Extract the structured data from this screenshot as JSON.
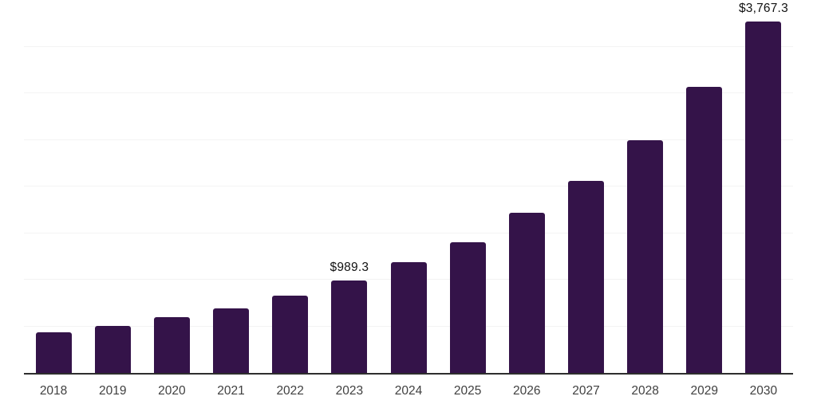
{
  "chart_data": {
    "type": "bar",
    "title": "",
    "xlabel": "",
    "ylabel": "",
    "categories": [
      "2018",
      "2019",
      "2020",
      "2021",
      "2022",
      "2023",
      "2024",
      "2025",
      "2026",
      "2027",
      "2028",
      "2029",
      "2030"
    ],
    "values": [
      435,
      505,
      598,
      692,
      828,
      989.3,
      1188,
      1400,
      1716,
      2060,
      2495,
      3068,
      3767.3
    ],
    "data_labels": [
      {
        "category": "2023",
        "text": "$989.3"
      },
      {
        "category": "2030",
        "text": "$3,767.3"
      }
    ],
    "ylim": [
      0,
      4000
    ],
    "gridline_step": 500,
    "grid": true,
    "legend_position": "none",
    "colors": {
      "bar": "#341349",
      "axis_line": "#2e2e2e",
      "gridline": "#f3f3f3",
      "tick_label": "#404040",
      "data_label": "#121212",
      "background": "#ffffff"
    }
  }
}
